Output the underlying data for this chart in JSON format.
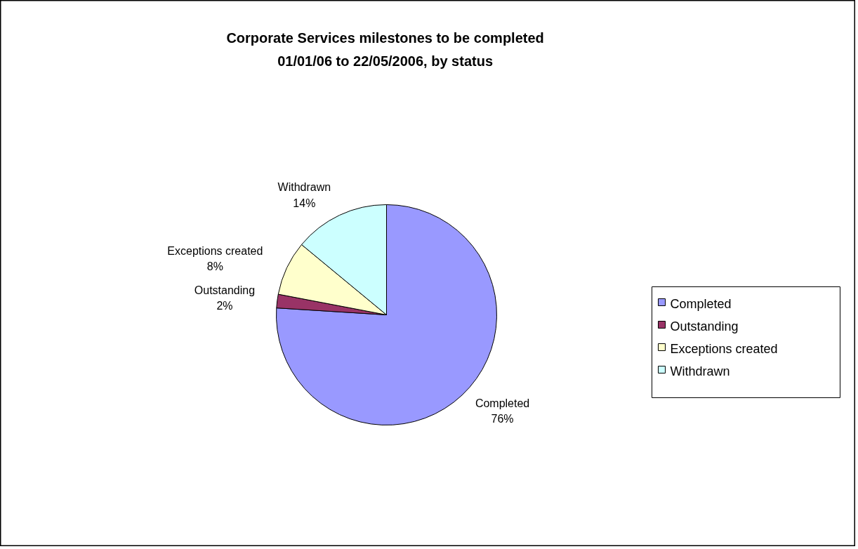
{
  "chart_data": {
    "type": "pie",
    "title": "Corporate Services milestones to be completed\n01/01/06 to 22/05/2006, by status",
    "categories": [
      "Completed",
      "Outstanding",
      "Exceptions created",
      "Withdrawn"
    ],
    "values": [
      76,
      2,
      8,
      14
    ],
    "colors": [
      "#9999ff",
      "#993366",
      "#ffffcc",
      "#ccffff"
    ],
    "value_labels": [
      "76%",
      "2%",
      "8%",
      "14%"
    ],
    "legend": "right"
  }
}
